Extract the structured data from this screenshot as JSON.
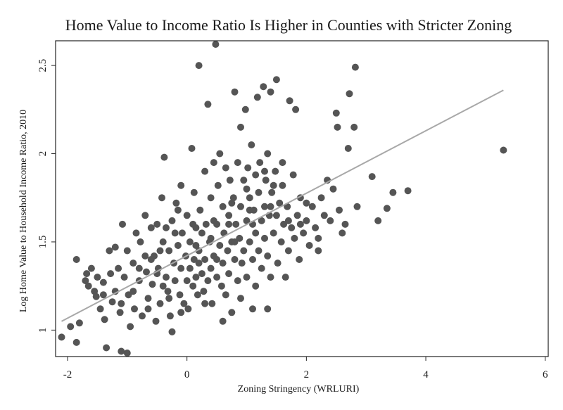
{
  "chart_data": {
    "type": "scatter",
    "title": "Home Value to Income Ratio Is Higher in Counties with Stricter Zoning",
    "xlabel": "Zoning Stringency (WRLURI)",
    "ylabel": "Log Home Value to Household Income Ratio, 2010",
    "xlim": [
      -2.2,
      6.05
    ],
    "ylim": [
      0.85,
      2.64
    ],
    "xticks": [
      -2,
      0,
      2,
      4,
      6
    ],
    "xtick_labels": [
      "-2",
      "0",
      "2",
      "4",
      "6"
    ],
    "yticks": [
      1,
      1.5,
      2,
      2.5
    ],
    "ytick_labels": [
      "1",
      "1.5",
      "2",
      "2.5"
    ],
    "grid": false,
    "legend": "none",
    "colors": {
      "points": "#555555",
      "fit_line": "#a8a8a8",
      "frame": "#222222"
    },
    "fit_line": {
      "x": [
        -2.1,
        5.3
      ],
      "y": [
        1.05,
        2.36
      ]
    },
    "points": [
      [
        -2.1,
        0.96
      ],
      [
        -1.95,
        1.02
      ],
      [
        -1.85,
        0.93
      ],
      [
        -1.8,
        1.04
      ],
      [
        -1.85,
        1.4
      ],
      [
        -1.7,
        1.28
      ],
      [
        -1.68,
        1.32
      ],
      [
        -1.65,
        1.25
      ],
      [
        -1.6,
        1.35
      ],
      [
        -1.55,
        1.22
      ],
      [
        -1.5,
        1.3
      ],
      [
        -1.52,
        1.19
      ],
      [
        -1.45,
        1.12
      ],
      [
        -1.4,
        1.27
      ],
      [
        -1.38,
        1.06
      ],
      [
        -1.35,
        0.9
      ],
      [
        -1.3,
        1.45
      ],
      [
        -1.28,
        1.32
      ],
      [
        -1.25,
        1.16
      ],
      [
        -1.2,
        1.47
      ],
      [
        -1.2,
        1.22
      ],
      [
        -1.15,
        1.35
      ],
      [
        -1.12,
        1.1
      ],
      [
        -1.1,
        0.88
      ],
      [
        -1.08,
        1.6
      ],
      [
        -1.05,
        1.3
      ],
      [
        -1.0,
        0.87
      ],
      [
        -1.0,
        1.45
      ],
      [
        -0.98,
        1.2
      ],
      [
        -0.95,
        1.02
      ],
      [
        -0.9,
        1.38
      ],
      [
        -0.88,
        1.12
      ],
      [
        -0.85,
        1.55
      ],
      [
        -0.8,
        1.28
      ],
      [
        -0.78,
        1.5
      ],
      [
        -0.75,
        1.08
      ],
      [
        -0.7,
        1.65
      ],
      [
        -0.68,
        1.33
      ],
      [
        -0.65,
        1.18
      ],
      [
        -0.6,
        1.58
      ],
      [
        -0.58,
        1.26
      ],
      [
        -0.55,
        1.42
      ],
      [
        -0.52,
        1.05
      ],
      [
        -0.5,
        1.6
      ],
      [
        -0.48,
        1.35
      ],
      [
        -0.45,
        1.15
      ],
      [
        -0.42,
        1.75
      ],
      [
        -0.4,
        1.5
      ],
      [
        -0.38,
        1.98
      ],
      [
        -0.35,
        1.3
      ],
      [
        -0.32,
        1.22
      ],
      [
        -0.3,
        1.45
      ],
      [
        -0.28,
        1.08
      ],
      [
        -0.25,
        1.62
      ],
      [
        -0.25,
        0.99
      ],
      [
        -0.22,
        1.38
      ],
      [
        -0.2,
        1.28
      ],
      [
        -0.18,
        1.72
      ],
      [
        -0.15,
        1.48
      ],
      [
        -0.12,
        1.2
      ],
      [
        -0.1,
        1.82
      ],
      [
        -0.1,
        1.35
      ],
      [
        -0.08,
        1.55
      ],
      [
        -0.05,
        1.15
      ],
      [
        -0.02,
        1.42
      ],
      [
        0.0,
        1.28
      ],
      [
        0.0,
        1.65
      ],
      [
        0.02,
        1.12
      ],
      [
        0.05,
        1.5
      ],
      [
        0.05,
        1.35
      ],
      [
        0.08,
        2.03
      ],
      [
        0.1,
        1.25
      ],
      [
        0.12,
        1.78
      ],
      [
        0.12,
        1.4
      ],
      [
        0.15,
        1.58
      ],
      [
        0.15,
        1.3
      ],
      [
        0.18,
        1.2
      ],
      [
        0.2,
        2.5
      ],
      [
        0.2,
        1.45
      ],
      [
        0.22,
        1.68
      ],
      [
        0.25,
        1.32
      ],
      [
        0.25,
        1.55
      ],
      [
        0.28,
        1.22
      ],
      [
        0.3,
        1.9
      ],
      [
        0.3,
        1.4
      ],
      [
        0.32,
        1.6
      ],
      [
        0.35,
        1.28
      ],
      [
        0.35,
        2.28
      ],
      [
        0.38,
        1.5
      ],
      [
        0.4,
        1.35
      ],
      [
        0.4,
        1.75
      ],
      [
        0.42,
        1.15
      ],
      [
        0.45,
        1.95
      ],
      [
        0.45,
        1.42
      ],
      [
        0.48,
        2.62
      ],
      [
        0.5,
        1.6
      ],
      [
        0.5,
        1.3
      ],
      [
        0.52,
        1.82
      ],
      [
        0.55,
        1.48
      ],
      [
        0.55,
        2.0
      ],
      [
        0.58,
        1.25
      ],
      [
        0.6,
        1.7
      ],
      [
        0.6,
        1.38
      ],
      [
        0.62,
        1.55
      ],
      [
        0.65,
        1.92
      ],
      [
        0.65,
        1.2
      ],
      [
        0.68,
        1.45
      ],
      [
        0.7,
        1.65
      ],
      [
        0.7,
        1.32
      ],
      [
        0.72,
        1.85
      ],
      [
        0.75,
        1.5
      ],
      [
        0.75,
        1.1
      ],
      [
        0.78,
        1.75
      ],
      [
        0.8,
        1.4
      ],
      [
        0.8,
        2.35
      ],
      [
        0.82,
        1.6
      ],
      [
        0.85,
        1.28
      ],
      [
        0.85,
        1.95
      ],
      [
        0.88,
        1.52
      ],
      [
        0.9,
        1.7
      ],
      [
        0.9,
        2.15
      ],
      [
        0.92,
        1.38
      ],
      [
        0.95,
        1.85
      ],
      [
        0.95,
        1.45
      ],
      [
        0.98,
        2.25
      ],
      [
        1.0,
        1.62
      ],
      [
        1.0,
        1.3
      ],
      [
        1.02,
        1.92
      ],
      [
        1.05,
        1.75
      ],
      [
        1.05,
        1.5
      ],
      [
        1.08,
        2.05
      ],
      [
        1.1,
        1.4
      ],
      [
        1.1,
        1.12
      ],
      [
        1.12,
        1.68
      ],
      [
        1.15,
        1.88
      ],
      [
        1.15,
        1.55
      ],
      [
        1.18,
        2.32
      ],
      [
        1.2,
        1.45
      ],
      [
        1.2,
        1.78
      ],
      [
        1.22,
        1.95
      ],
      [
        1.25,
        1.62
      ],
      [
        1.25,
        1.35
      ],
      [
        1.28,
        2.38
      ],
      [
        1.3,
        1.7
      ],
      [
        1.3,
        1.52
      ],
      [
        1.32,
        1.85
      ],
      [
        1.35,
        2.0
      ],
      [
        1.35,
        1.42
      ],
      [
        1.38,
        1.65
      ],
      [
        1.4,
        1.3
      ],
      [
        1.4,
        2.35
      ],
      [
        1.42,
        1.78
      ],
      [
        1.45,
        1.55
      ],
      [
        1.48,
        1.9
      ],
      [
        1.5,
        1.65
      ],
      [
        1.5,
        2.42
      ],
      [
        1.52,
        1.38
      ],
      [
        1.55,
        1.72
      ],
      [
        1.58,
        1.5
      ],
      [
        1.6,
        1.82
      ],
      [
        1.62,
        1.6
      ],
      [
        1.65,
        1.3
      ],
      [
        1.68,
        1.7
      ],
      [
        1.7,
        1.45
      ],
      [
        1.72,
        2.3
      ],
      [
        1.75,
        1.58
      ],
      [
        1.78,
        1.88
      ],
      [
        1.8,
        1.52
      ],
      [
        1.82,
        2.25
      ],
      [
        1.85,
        1.65
      ],
      [
        1.88,
        1.4
      ],
      [
        1.9,
        1.75
      ],
      [
        1.95,
        1.55
      ],
      [
        2.0,
        1.62
      ],
      [
        2.05,
        1.48
      ],
      [
        2.1,
        1.7
      ],
      [
        2.15,
        1.58
      ],
      [
        2.2,
        1.52
      ],
      [
        2.25,
        1.75
      ],
      [
        2.3,
        1.65
      ],
      [
        2.35,
        1.85
      ],
      [
        2.4,
        1.62
      ],
      [
        2.45,
        1.8
      ],
      [
        2.5,
        2.23
      ],
      [
        2.52,
        2.15
      ],
      [
        2.55,
        1.68
      ],
      [
        2.6,
        1.55
      ],
      [
        2.65,
        1.6
      ],
      [
        2.7,
        2.03
      ],
      [
        2.72,
        2.34
      ],
      [
        2.8,
        2.15
      ],
      [
        2.82,
        2.49
      ],
      [
        2.85,
        1.7
      ],
      [
        3.1,
        1.87
      ],
      [
        3.2,
        1.62
      ],
      [
        3.35,
        1.69
      ],
      [
        3.45,
        1.78
      ],
      [
        3.7,
        1.79
      ],
      [
        5.3,
        2.02
      ],
      [
        -0.6,
        1.4
      ],
      [
        -0.4,
        1.25
      ],
      [
        -0.2,
        1.55
      ],
      [
        0.3,
        1.15
      ],
      [
        0.6,
        1.05
      ],
      [
        0.9,
        1.18
      ],
      [
        1.15,
        1.25
      ],
      [
        1.35,
        1.12
      ],
      [
        -0.9,
        1.22
      ],
      [
        -0.7,
        1.42
      ],
      [
        -0.5,
        1.32
      ],
      [
        -0.3,
        1.18
      ],
      [
        0.1,
        1.6
      ],
      [
        0.4,
        1.52
      ],
      [
        0.7,
        1.6
      ],
      [
        1.0,
        1.8
      ],
      [
        1.3,
        1.9
      ],
      [
        1.6,
        1.95
      ],
      [
        1.9,
        1.6
      ],
      [
        2.2,
        1.45
      ],
      [
        -1.4,
        1.2
      ],
      [
        -1.1,
        1.15
      ],
      [
        -0.8,
        1.35
      ],
      [
        -0.1,
        1.1
      ],
      [
        0.2,
        1.38
      ],
      [
        0.5,
        1.4
      ],
      [
        0.8,
        1.5
      ],
      [
        1.1,
        1.6
      ],
      [
        1.4,
        1.7
      ],
      [
        1.7,
        1.62
      ],
      [
        2.0,
        1.72
      ],
      [
        -0.45,
        1.45
      ],
      [
        -0.15,
        1.68
      ],
      [
        0.15,
        1.48
      ],
      [
        0.45,
        1.62
      ],
      [
        0.75,
        1.72
      ],
      [
        1.05,
        1.68
      ],
      [
        1.45,
        1.82
      ],
      [
        -0.65,
        1.12
      ],
      [
        -0.35,
        1.58
      ]
    ]
  }
}
